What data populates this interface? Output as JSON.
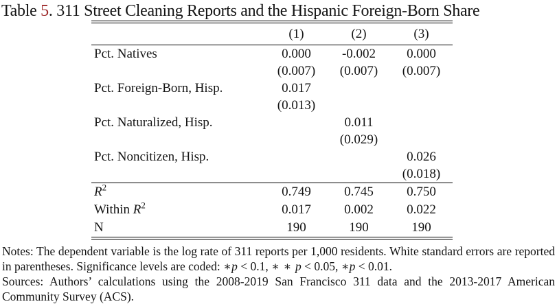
{
  "title": {
    "prefix": "Table ",
    "number": "5",
    "rest": ". 311 Street Cleaning Reports and the Hispanic Foreign-Born Share"
  },
  "table": {
    "columns": [
      "(1)",
      "(2)",
      "(3)"
    ],
    "rows": [
      {
        "label": "Pct. Natives",
        "coefs": [
          "0.000",
          "-0.002",
          "0.000"
        ],
        "ses": [
          "(0.007)",
          "(0.007)",
          "(0.007)"
        ]
      },
      {
        "label": "Pct. Foreign-Born, Hisp.",
        "coefs": [
          "0.017",
          "",
          ""
        ],
        "ses": [
          "(0.013)",
          "",
          ""
        ]
      },
      {
        "label": "Pct. Naturalized, Hisp.",
        "coefs": [
          "",
          "0.011",
          ""
        ],
        "ses": [
          "",
          "(0.029)",
          ""
        ]
      },
      {
        "label": "Pct. Noncitizen, Hisp.",
        "coefs": [
          "",
          "",
          "0.026"
        ],
        "ses": [
          "",
          "",
          "(0.018)"
        ]
      }
    ],
    "stats": [
      {
        "prefix": "",
        "math": "R",
        "sup": "2",
        "values": [
          "0.749",
          "0.745",
          "0.750"
        ]
      },
      {
        "prefix": "Within ",
        "math": "R",
        "sup": "2",
        "values": [
          "0.017",
          "0.002",
          "0.022"
        ]
      },
      {
        "prefix": "N",
        "math": "",
        "sup": "",
        "values": [
          "190",
          "190",
          "190"
        ]
      }
    ]
  },
  "notes": {
    "label": "Notes:",
    "body": " The dependent variable is the log rate of 311 reports per 1,000 residents. White standard errors are reported in parentheses. Significance levels are coded: ",
    "sig": [
      {
        "stars": "∗",
        "p": "p",
        "cond": " < 0.1, "
      },
      {
        "stars": "∗ ∗ ",
        "p": "p",
        "cond": " < 0.05, "
      },
      {
        "stars": "∗",
        "p": "p",
        "cond": " < 0.01."
      }
    ]
  },
  "sources": {
    "label": "Sources:",
    "body": " Authors’ calculations using the 2008-2019 San Francisco 311 data and the 2013-2017 American Community Survey (ACS)."
  }
}
